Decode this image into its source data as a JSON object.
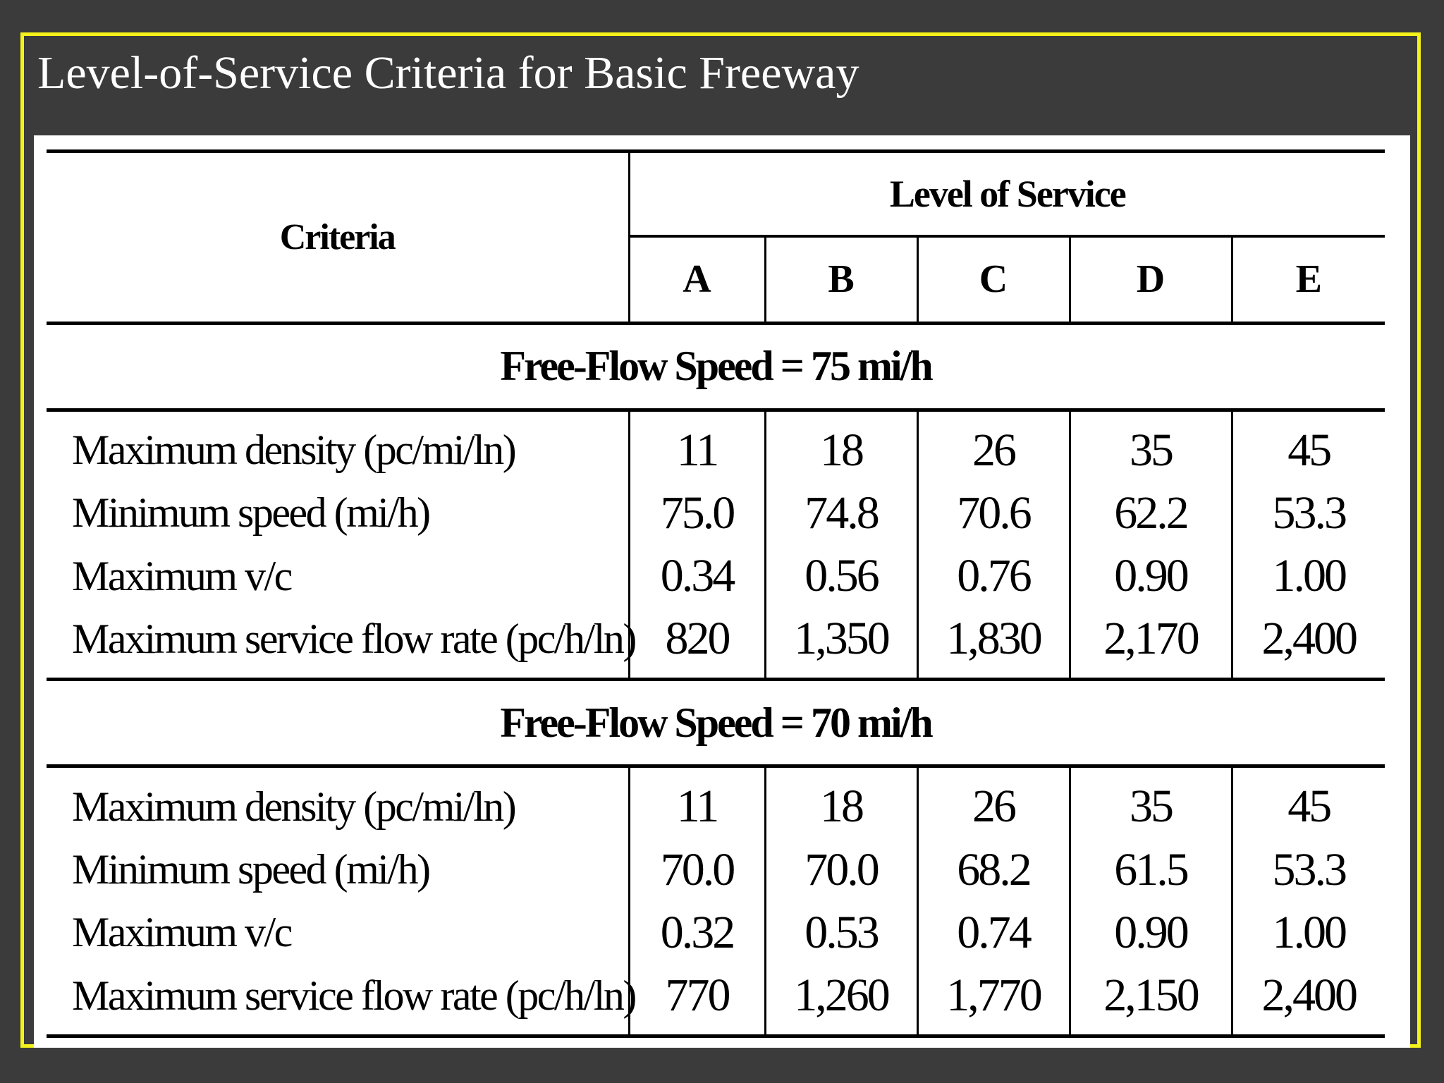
{
  "slide": {
    "title": "Level-of-Service Criteria for Basic Freeway"
  },
  "table": {
    "criteria_header": "Criteria",
    "group_header": "Level of Service",
    "levels": [
      "A",
      "B",
      "C",
      "D",
      "E"
    ],
    "sections": [
      {
        "heading": "Free-Flow Speed = 75 mi/h",
        "rows": [
          {
            "criterion": "Maximum density (pc/mi/ln)",
            "values": [
              "11",
              "18",
              "26",
              "35",
              "45"
            ]
          },
          {
            "criterion": "Minimum speed (mi/h)",
            "values": [
              "75.0",
              "74.8",
              "70.6",
              "62.2",
              "53.3"
            ]
          },
          {
            "criterion": "Maximum v/c",
            "values": [
              "0.34",
              "0.56",
              "0.76",
              "0.90",
              "1.00"
            ]
          },
          {
            "criterion": "Maximum service flow rate (pc/h/ln)",
            "values": [
              "820",
              "1,350",
              "1,830",
              "2,170",
              "2,400"
            ]
          }
        ]
      },
      {
        "heading": "Free-Flow Speed = 70 mi/h",
        "rows": [
          {
            "criterion": "Maximum density (pc/mi/ln)",
            "values": [
              "11",
              "18",
              "26",
              "35",
              "45"
            ]
          },
          {
            "criterion": "Minimum speed (mi/h)",
            "values": [
              "70.0",
              "70.0",
              "68.2",
              "61.5",
              "53.3"
            ]
          },
          {
            "criterion": "Maximum v/c",
            "values": [
              "0.32",
              "0.53",
              "0.74",
              "0.90",
              "1.00"
            ]
          },
          {
            "criterion": "Maximum service flow rate (pc/h/ln)",
            "values": [
              "770",
              "1,260",
              "1,770",
              "2,150",
              "2,400"
            ]
          }
        ]
      }
    ]
  }
}
